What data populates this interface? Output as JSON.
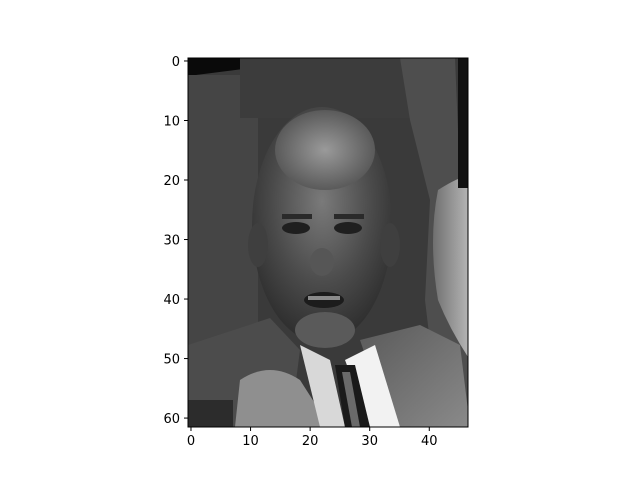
{
  "chart_data": {
    "type": "heatmap",
    "title": "",
    "xlabel": "",
    "ylabel": "",
    "colormap": "gray",
    "image_shape": [
      62,
      47
    ],
    "xlim": [
      -0.5,
      46.5
    ],
    "ylim": [
      61.5,
      -0.5
    ],
    "x_ticks": [
      0,
      10,
      20,
      30,
      40
    ],
    "y_ticks": [
      0,
      10,
      20,
      30,
      40,
      50,
      60
    ],
    "x_tick_labels": [
      "0",
      "10",
      "20",
      "30",
      "40"
    ],
    "y_tick_labels": [
      "0",
      "10",
      "20",
      "30",
      "40",
      "50",
      "60"
    ],
    "grid": false,
    "content": "grayscale photograph of a man's face in a suit and tie"
  }
}
